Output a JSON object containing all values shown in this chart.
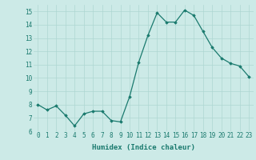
{
  "x": [
    0,
    1,
    2,
    3,
    4,
    5,
    6,
    7,
    8,
    9,
    10,
    11,
    12,
    13,
    14,
    15,
    16,
    17,
    18,
    19,
    20,
    21,
    22,
    23
  ],
  "y": [
    8.0,
    7.6,
    7.9,
    7.2,
    6.4,
    7.3,
    7.5,
    7.5,
    6.8,
    6.7,
    8.6,
    11.2,
    13.2,
    14.9,
    14.2,
    14.2,
    15.1,
    14.7,
    13.5,
    12.3,
    11.5,
    11.1,
    10.9,
    10.1
  ],
  "line_color": "#1a7a6e",
  "marker": "D",
  "marker_size": 1.8,
  "line_width": 0.9,
  "bg_color": "#cceae7",
  "grid_color": "#aed6d2",
  "xlabel": "Humidex (Indice chaleur)",
  "xlabel_fontsize": 6.5,
  "xlabel_color": "#1a7a6e",
  "tick_color": "#1a7a6e",
  "tick_fontsize": 5.5,
  "xlim": [
    -0.5,
    23.5
  ],
  "ylim": [
    6,
    15.5
  ],
  "yticks": [
    6,
    7,
    8,
    9,
    10,
    11,
    12,
    13,
    14,
    15
  ],
  "xticks": [
    0,
    1,
    2,
    3,
    4,
    5,
    6,
    7,
    8,
    9,
    10,
    11,
    12,
    13,
    14,
    15,
    16,
    17,
    18,
    19,
    20,
    21,
    22,
    23
  ]
}
